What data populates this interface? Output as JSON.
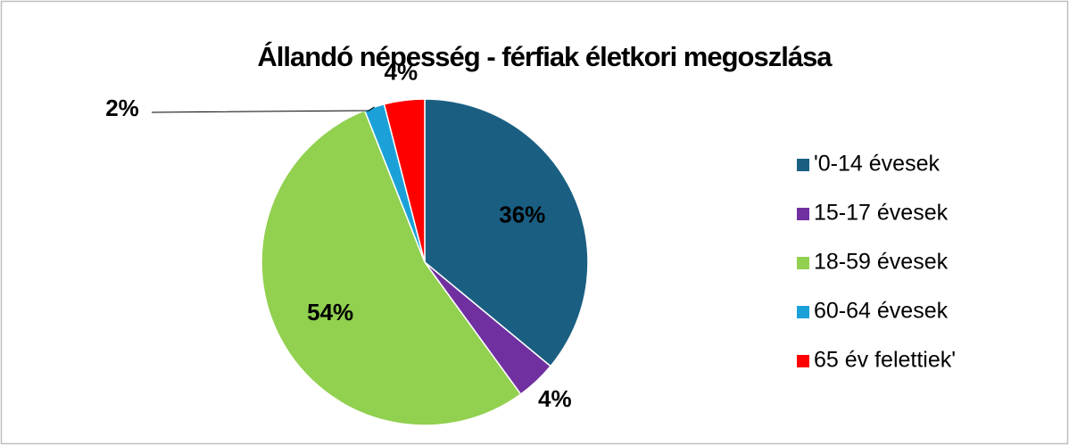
{
  "chart_data": {
    "type": "pie",
    "title": "Állandó népesség - férfiak életkori megoszlása",
    "categories": [
      "'0-14 évesek",
      "15-17 évesek",
      "18-59 évesek",
      "60-64 évesek",
      "65 év felettiek'"
    ],
    "values": [
      36,
      4,
      54,
      2,
      4
    ],
    "value_labels": [
      "36%",
      "4%",
      "54%",
      "2%",
      "4%"
    ],
    "colors": [
      "#1a5f82",
      "#7030a0",
      "#92d050",
      "#1ba1d8",
      "#ff0000"
    ],
    "legend": "right"
  }
}
